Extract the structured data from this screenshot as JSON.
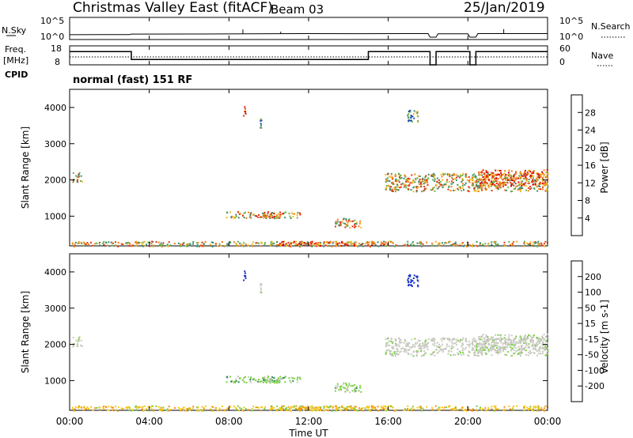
{
  "header": {
    "station": "Christmas Valley East (fitACF)",
    "beam": "Beam 03",
    "date": "25/Jan/2019"
  },
  "noise_panel": {
    "left_label": "N.Sky",
    "right_label": "N.Search",
    "y_ticks_left": [
      "10^5",
      "10^0"
    ],
    "y_ticks_right": [
      "10^5",
      "10^0"
    ]
  },
  "freq_panel": {
    "left_label_line1": "Freq.",
    "left_label_line2": "[MHz]",
    "right_label": "Nave",
    "y_ticks_left": [
      "18",
      "8"
    ],
    "y_ticks_right": [
      "60",
      "0"
    ]
  },
  "cpid": {
    "label": "CPID",
    "mode": "normal (fast) 151 RF"
  },
  "time_axis": {
    "label": "Time UT",
    "ticks": [
      "00:00",
      "04:00",
      "08:00",
      "12:00",
      "16:00",
      "20:00",
      "00:00"
    ]
  },
  "range_axis": {
    "label": "Slant Range [km]",
    "ticks": [
      "1000",
      "2000",
      "3000",
      "4000"
    ],
    "range_km": [
      180,
      4500
    ]
  },
  "power_colorbar": {
    "label": "Power [dB]",
    "ticks": [
      "4",
      "8",
      "12",
      "16",
      "20",
      "24",
      "28"
    ],
    "colors": [
      "#0a10ee",
      "#1f4aa0",
      "#3a8a6a",
      "#6ab04c",
      "#f2b620",
      "#f07e10",
      "#e63010",
      "#dd0000"
    ]
  },
  "velocity_colorbar": {
    "label": "Velocity [m s-1]",
    "ticks": [
      "200",
      "100",
      "50",
      "15",
      "-15",
      "-50",
      "-100",
      "-200"
    ],
    "colors": [
      "#1830c8",
      "#246a8c",
      "#2a8a4a",
      "#7ad040",
      "#c8c8c0",
      "#f5c818",
      "#f59010",
      "#f25010",
      "#e01010"
    ]
  },
  "chart_data": {
    "type": "heatmap",
    "x_range_hours": [
      0,
      24
    ],
    "noise_sky_log10": [
      [
        0,
        0.9
      ],
      [
        3,
        0.95
      ],
      [
        3.1,
        1.1
      ],
      [
        6,
        1.15
      ],
      [
        9,
        1.2
      ],
      [
        12,
        1.3
      ],
      [
        14.5,
        1.25
      ],
      [
        18,
        1.3
      ],
      [
        18.1,
        0
      ],
      [
        18.4,
        0
      ],
      [
        18.5,
        1.2
      ],
      [
        20,
        1.2
      ],
      [
        20.1,
        0
      ],
      [
        20.4,
        0
      ],
      [
        20.5,
        1.3
      ],
      [
        24,
        1.3
      ]
    ],
    "noise_sky_spikes": [
      {
        "hour": 8.7,
        "log10": 2.8
      },
      {
        "hour": 10.6,
        "log10": 2.0
      },
      {
        "hour": 21.8,
        "log10": 2.9
      }
    ],
    "frequency_mhz": [
      [
        0,
        15
      ],
      [
        3.1,
        15
      ],
      [
        3.1,
        10.8
      ],
      [
        15,
        10.8
      ],
      [
        15,
        15
      ],
      [
        18.1,
        15
      ],
      [
        18.1,
        8
      ],
      [
        18.4,
        8
      ],
      [
        18.4,
        15
      ],
      [
        20.1,
        15
      ],
      [
        20.1,
        8
      ],
      [
        20.4,
        8
      ],
      [
        20.4,
        15
      ],
      [
        24,
        15
      ]
    ],
    "nave_dotted": 18,
    "power_patches": [
      {
        "t0": 0.1,
        "t1": 24,
        "r0": 180,
        "r1": 320,
        "level": "mid"
      },
      {
        "t0": 10.5,
        "t1": 15.2,
        "r0": 200,
        "r1": 320,
        "level": "high"
      },
      {
        "t0": 7.8,
        "t1": 11.6,
        "r0": 960,
        "r1": 1140,
        "level": "mid"
      },
      {
        "t0": 13.3,
        "t1": 14.7,
        "r0": 700,
        "r1": 960,
        "level": "mid"
      },
      {
        "t0": 9.3,
        "t1": 10.8,
        "r0": 980,
        "r1": 1100,
        "level": "high"
      },
      {
        "t0": 15.8,
        "t1": 24,
        "r0": 1700,
        "r1": 2200,
        "level": "mid"
      },
      {
        "t0": 20.5,
        "t1": 24,
        "r0": 1850,
        "r1": 2300,
        "level": "high"
      },
      {
        "t0": 16.9,
        "t1": 17.5,
        "r0": 3600,
        "r1": 3950,
        "level": "low"
      },
      {
        "t0": 0.1,
        "t1": 0.6,
        "r0": 1950,
        "r1": 2250,
        "level": "mid"
      },
      {
        "t0": 8.7,
        "t1": 8.8,
        "r0": 3750,
        "r1": 4200,
        "level": "high"
      },
      {
        "t0": 9.5,
        "t1": 9.6,
        "r0": 3350,
        "r1": 3700,
        "level": "low"
      }
    ]
  }
}
